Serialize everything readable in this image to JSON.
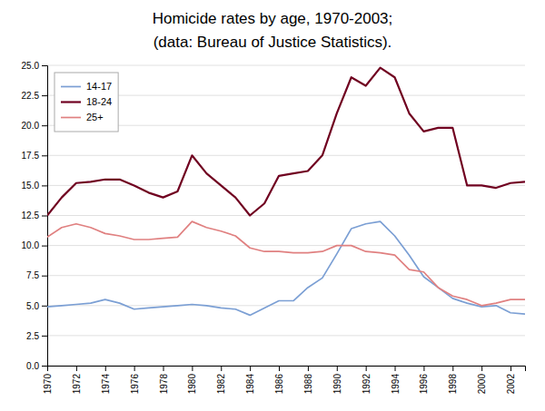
{
  "chart_data": {
    "type": "line",
    "title": "Homicide rates by age, 1970-2003;",
    "subtitle": "(data: Bureau of Justice Statistics).",
    "x": [
      1970,
      1971,
      1972,
      1973,
      1974,
      1975,
      1976,
      1977,
      1978,
      1979,
      1980,
      1981,
      1982,
      1983,
      1984,
      1985,
      1986,
      1987,
      1988,
      1989,
      1990,
      1991,
      1992,
      1993,
      1994,
      1995,
      1996,
      1997,
      1998,
      1999,
      2000,
      2001,
      2002,
      2003
    ],
    "series": [
      {
        "name": "14-17",
        "color": "#7b9fd4",
        "values": [
          4.9,
          5.0,
          5.1,
          5.2,
          5.5,
          5.2,
          4.7,
          4.8,
          4.9,
          5.0,
          5.1,
          5.0,
          4.8,
          4.7,
          4.2,
          4.8,
          5.4,
          5.4,
          6.5,
          7.3,
          9.3,
          11.4,
          11.8,
          12.0,
          10.8,
          9.2,
          7.4,
          6.5,
          5.6,
          5.2,
          4.9,
          5.0,
          4.4,
          4.3
        ]
      },
      {
        "name": "18-24",
        "color": "#700020",
        "values": [
          12.5,
          14.0,
          15.2,
          15.3,
          15.5,
          15.5,
          15.0,
          14.4,
          14.0,
          14.5,
          17.5,
          16.0,
          15.0,
          14.0,
          12.5,
          13.5,
          15.8,
          16.0,
          16.2,
          17.5,
          21.0,
          24.0,
          23.3,
          24.8,
          24.0,
          21.0,
          19.5,
          19.8,
          19.8,
          15.0,
          15.0,
          14.8,
          15.2,
          15.3
        ]
      },
      {
        "name": "25+",
        "color": "#e08080",
        "values": [
          10.7,
          11.5,
          11.8,
          11.5,
          11.0,
          10.8,
          10.5,
          10.5,
          10.6,
          10.7,
          12.0,
          11.5,
          11.2,
          10.8,
          9.8,
          9.5,
          9.5,
          9.4,
          9.4,
          9.5,
          10.0,
          10.0,
          9.5,
          9.4,
          9.2,
          8.0,
          7.8,
          6.5,
          5.8,
          5.5,
          5.0,
          5.2,
          5.5,
          5.5
        ]
      }
    ],
    "xlim": [
      1970,
      2003
    ],
    "xticks": [
      1970,
      1972,
      1974,
      1976,
      1978,
      1980,
      1982,
      1984,
      1986,
      1988,
      1990,
      1992,
      1994,
      1996,
      1998,
      2000,
      2002
    ],
    "ylim": [
      0,
      25.0
    ],
    "yticks": [
      {
        "value": 0,
        "label": "0.0"
      },
      2.5,
      {
        "value": 5,
        "label": "5.0"
      },
      7.5,
      {
        "value": 10,
        "label": "10.0"
      },
      12.5,
      {
        "value": 15,
        "label": "15.0"
      },
      17.5,
      {
        "value": 20,
        "label": "20.0"
      },
      22.5,
      {
        "value": 25,
        "label": "25.0"
      }
    ],
    "grid": true,
    "legend": "upper left"
  }
}
